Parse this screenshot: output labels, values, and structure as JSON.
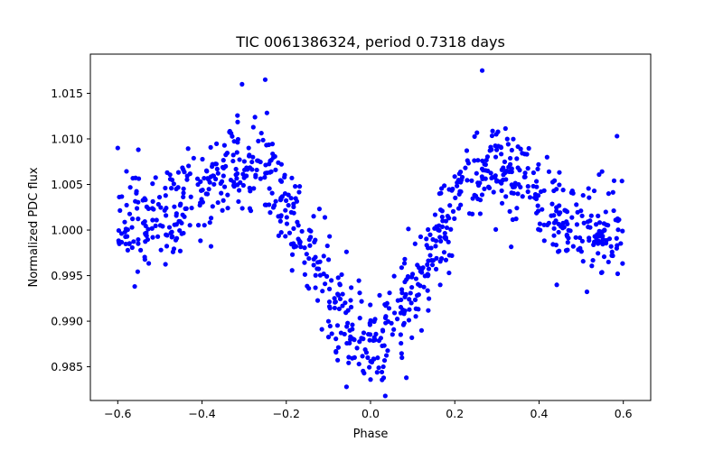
{
  "chart_data": {
    "type": "scatter",
    "title": "TIC 0061386324, period 0.7318 days",
    "xlabel": "Phase",
    "ylabel": "Normalized PDC flux",
    "xlim": [
      -0.665,
      0.665
    ],
    "ylim": [
      0.9813,
      1.0193
    ],
    "xticks": [
      -0.6,
      -0.4,
      -0.2,
      0.0,
      0.2,
      0.4,
      0.6
    ],
    "xtick_labels": [
      "−0.6",
      "−0.4",
      "−0.2",
      "0.0",
      "0.2",
      "0.4",
      "0.6"
    ],
    "yticks": [
      0.985,
      0.99,
      0.995,
      1.0,
      1.005,
      1.01,
      1.015
    ],
    "ytick_labels": [
      "0.985",
      "0.990",
      "0.995",
      "1.000",
      "1.005",
      "1.010",
      "1.015"
    ],
    "grid": false,
    "marker_color": "#0000ff",
    "phase_range": [
      -0.6,
      0.6
    ],
    "n_points": 900,
    "model": {
      "baseline": 1.0,
      "dip_depth": 0.0122,
      "dip_center": 0.0,
      "dip_width": 0.11,
      "peak_amplitude": 0.0075,
      "peak_centers": [
        -0.29,
        0.29
      ],
      "peak_width": 0.1,
      "scatter_sigma": 0.0027
    },
    "notable_points": [
      {
        "x": 0.265,
        "y": 1.0175
      },
      {
        "x": -0.25,
        "y": 1.0165
      },
      {
        "x": -0.305,
        "y": 1.016
      },
      {
        "x": 0.035,
        "y": 0.9818
      },
      {
        "x": 0.085,
        "y": 0.9838
      },
      {
        "x": 0.0,
        "y": 0.9836
      },
      {
        "x": -0.6,
        "y": 1.009
      },
      {
        "x": 0.585,
        "y": 1.0103
      }
    ]
  }
}
